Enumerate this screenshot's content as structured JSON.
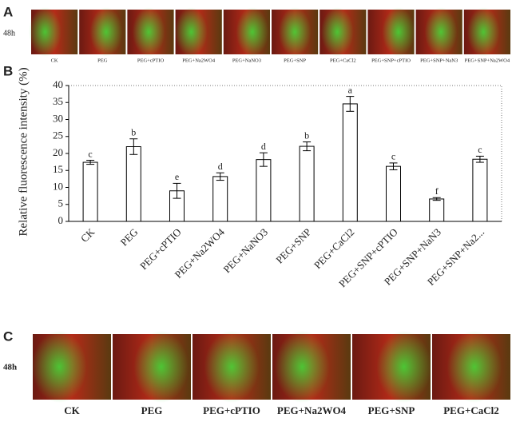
{
  "panel_a": {
    "label": "A",
    "time": "48h",
    "images": [
      "CK",
      "PEG",
      "PEG+cPTIO",
      "PEG+Na2WO4",
      "PEG+NaNO3",
      "PEG+SNP",
      "PEG+CaCl2",
      "PEG+SNP+cPTIO",
      "PEG+SNP+NaN3",
      "PEG+SNP+Na2WO4"
    ]
  },
  "chart_data": {
    "type": "bar",
    "panel_label": "B",
    "ylabel": "Relative  fluorescence intensity (%)",
    "categories": [
      "CK",
      "PEG",
      "PEG+cPTIO",
      "PEG+Na2WO4",
      "PEG+NaNO3",
      "PEG+SNP",
      "PEG+CaCl2",
      "PEG+SNP+cPTIO",
      "PEG+SNP+NaN3",
      "PEG+SNP+Na2..."
    ],
    "values": [
      17.4,
      22,
      9,
      13.2,
      18.2,
      22.1,
      34.6,
      16.2,
      6.6,
      18.3
    ],
    "errors": [
      0.6,
      2.3,
      2.2,
      1.1,
      2,
      1.3,
      2.2,
      1,
      0.4,
      0.9
    ],
    "letters": [
      "c",
      "b",
      "e",
      "d",
      "d",
      "b",
      "a",
      "c",
      "f",
      "c"
    ],
    "color": "#ffffff",
    "ylim": [
      0,
      40
    ],
    "yticks": [
      0,
      5,
      10,
      15,
      20,
      25,
      30,
      35,
      40
    ]
  },
  "panel_c": {
    "label": "C",
    "time": "48h",
    "images": [
      "CK",
      "PEG",
      "PEG+cPTIO",
      "PEG+Na2WO4",
      "PEG+SNP",
      "PEG+CaCl2"
    ]
  }
}
